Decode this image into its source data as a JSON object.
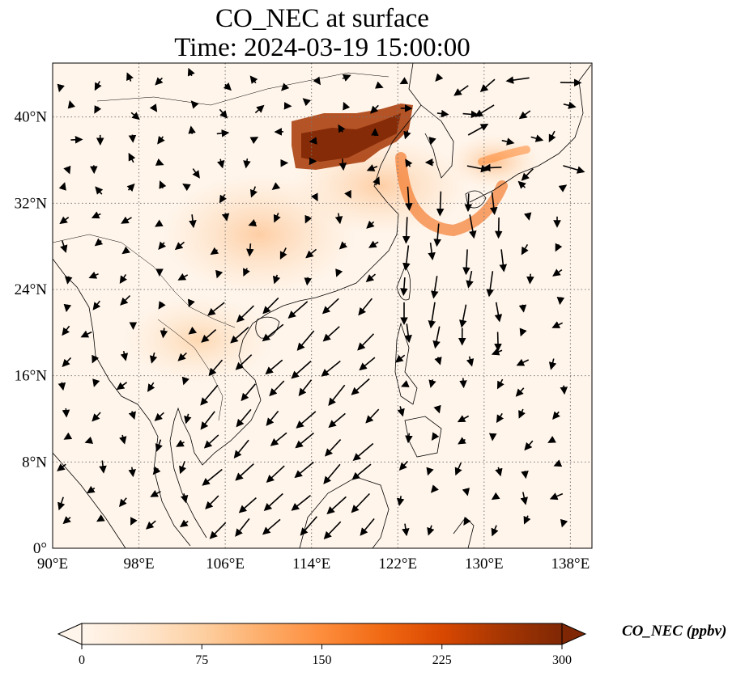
{
  "title": {
    "line1": "CO_NEC at surface",
    "line2": "Time: 2024-03-19 15:00:00"
  },
  "map": {
    "lon_range": [
      90,
      140
    ],
    "lat_range": [
      0,
      45
    ],
    "lon_ticks": [
      {
        "value": 90,
        "label": "90°E"
      },
      {
        "value": 98,
        "label": "98°E"
      },
      {
        "value": 106,
        "label": "106°E"
      },
      {
        "value": 114,
        "label": "114°E"
      },
      {
        "value": 122,
        "label": "122°E"
      },
      {
        "value": 130,
        "label": "130°E"
      },
      {
        "value": 138,
        "label": "138°E"
      }
    ],
    "lat_ticks": [
      {
        "value": 0,
        "label": "0°"
      },
      {
        "value": 8,
        "label": "8°N"
      },
      {
        "value": 16,
        "label": "16°N"
      },
      {
        "value": 24,
        "label": "24°N"
      },
      {
        "value": 32,
        "label": "32°N"
      },
      {
        "value": 40,
        "label": "40°N"
      }
    ],
    "gridlines": true,
    "background_color": "#fff5eb",
    "wind_vectors": "black arrows"
  },
  "colorbar": {
    "label": "CO_NEC (ppbv)",
    "min": 0,
    "max": 300,
    "ticks": [
      {
        "value": 0,
        "label": "0"
      },
      {
        "value": 75,
        "label": "75"
      },
      {
        "value": 150,
        "label": "150"
      },
      {
        "value": 225,
        "label": "225"
      },
      {
        "value": 300,
        "label": "300"
      }
    ],
    "colormap": [
      "#fff5eb",
      "#fee6ce",
      "#fdd0a2",
      "#fdae6b",
      "#fd8d3c",
      "#f16913",
      "#d94801",
      "#a63603",
      "#7f2704"
    ],
    "extend": "both"
  }
}
